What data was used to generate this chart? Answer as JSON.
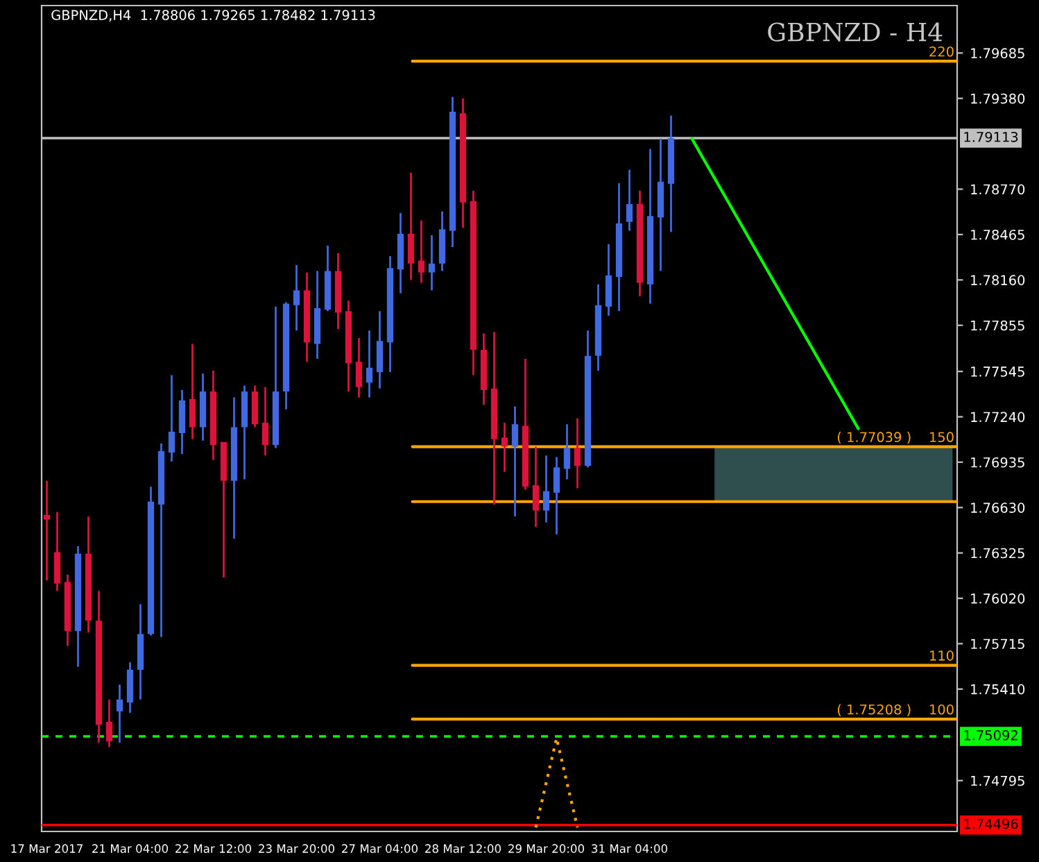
{
  "chart_data": {
    "type": "candlestick",
    "title": "GBPNZD - H4",
    "categories": [
      "17 Mar 2017",
      null,
      null,
      null,
      null,
      null,
      null,
      null,
      "21 Mar 04:00",
      null,
      null,
      null,
      null,
      null,
      null,
      null,
      "22 Mar 12:00",
      null,
      null,
      null,
      null,
      null,
      null,
      null,
      "23 Mar 20:00",
      null,
      null,
      null,
      null,
      null,
      null,
      null,
      "27 Mar 04:00",
      null,
      null,
      null,
      null,
      null,
      null,
      null,
      "28 Mar 12:00",
      null,
      null,
      null,
      null,
      null,
      null,
      null,
      "29 Mar 20:00",
      null,
      null,
      null,
      null,
      null,
      null,
      null,
      "31 Mar 04:00",
      null,
      null,
      null,
      null,
      null,
      null,
      null,
      null,
      null,
      null,
      null,
      null,
      null,
      null,
      null,
      null,
      null,
      null,
      null,
      null,
      null,
      null,
      null,
      null,
      null,
      null,
      null,
      null,
      null,
      null,
      null
    ],
    "ohlc": [
      [
        1.7658,
        1.7681,
        1.7614,
        1.7655
      ],
      [
        1.7633,
        1.766,
        1.7607,
        1.7612
      ],
      [
        1.7613,
        1.7618,
        1.757,
        1.758
      ],
      [
        1.758,
        1.7637,
        1.7556,
        1.7632
      ],
      [
        1.7632,
        1.7657,
        1.7579,
        1.7587
      ],
      [
        1.7587,
        1.7607,
        1.7505,
        1.7517
      ],
      [
        1.7519,
        1.7534,
        1.7502,
        1.7506
      ],
      [
        1.7526,
        1.7544,
        1.7505,
        1.7534
      ],
      [
        1.7532,
        1.7559,
        1.7525,
        1.7554
      ],
      [
        1.7554,
        1.7598,
        1.7534,
        1.7578
      ],
      [
        1.7578,
        1.7677,
        1.7577,
        1.7667
      ],
      [
        1.7665,
        1.7706,
        1.7576,
        1.7701
      ],
      [
        1.77,
        1.7752,
        1.7694,
        1.7714
      ],
      [
        1.7713,
        1.7742,
        1.7699,
        1.7735
      ],
      [
        1.7736,
        1.7773,
        1.7709,
        1.7717
      ],
      [
        1.7717,
        1.7753,
        1.7708,
        1.7741
      ],
      [
        1.7741,
        1.7755,
        1.7695,
        1.7705
      ],
      [
        1.7707,
        1.7707,
        1.7616,
        1.7681
      ],
      [
        1.7681,
        1.7737,
        1.7642,
        1.7717
      ],
      [
        1.7717,
        1.7745,
        1.7682,
        1.7741
      ],
      [
        1.7741,
        1.7745,
        1.7717,
        1.7719
      ],
      [
        1.772,
        1.7744,
        1.7698,
        1.7705
      ],
      [
        1.7705,
        1.7798,
        1.7703,
        1.7741
      ],
      [
        1.7741,
        1.7801,
        1.7729,
        1.78
      ],
      [
        1.7799,
        1.7826,
        1.7782,
        1.7809
      ],
      [
        1.7809,
        1.7821,
        1.7761,
        1.7774
      ],
      [
        1.7773,
        1.7822,
        1.7763,
        1.7797
      ],
      [
        1.7796,
        1.7839,
        1.7795,
        1.7822
      ],
      [
        1.7822,
        1.7834,
        1.7783,
        1.7794
      ],
      [
        1.7795,
        1.7802,
        1.7741,
        1.776
      ],
      [
        1.7761,
        1.7777,
        1.7737,
        1.7744
      ],
      [
        1.7747,
        1.7782,
        1.7737,
        1.7757
      ],
      [
        1.7754,
        1.7795,
        1.7743,
        1.7775
      ],
      [
        1.7774,
        1.7832,
        1.7754,
        1.7824
      ],
      [
        1.7823,
        1.7861,
        1.7807,
        1.7847
      ],
      [
        1.7847,
        1.7888,
        1.7816,
        1.7827
      ],
      [
        1.7829,
        1.7856,
        1.7814,
        1.7821
      ],
      [
        1.7821,
        1.7846,
        1.7809,
        1.7827
      ],
      [
        1.7827,
        1.7862,
        1.7822,
        1.785
      ],
      [
        1.7849,
        1.7939,
        1.7838,
        1.7929
      ],
      [
        1.7928,
        1.7938,
        1.7851,
        1.7868
      ],
      [
        1.7869,
        1.7876,
        1.7752,
        1.7769
      ],
      [
        1.7769,
        1.778,
        1.7732,
        1.7742
      ],
      [
        1.7743,
        1.7781,
        1.7665,
        1.7709
      ],
      [
        1.771,
        1.772,
        1.7687,
        1.7704
      ],
      [
        1.7704,
        1.7731,
        1.7657,
        1.7719
      ],
      [
        1.7718,
        1.7763,
        1.7675,
        1.7677
      ],
      [
        1.7678,
        1.7704,
        1.765,
        1.7661
      ],
      [
        1.7661,
        1.7698,
        1.7653,
        1.7674
      ],
      [
        1.7673,
        1.7697,
        1.7645,
        1.769
      ],
      [
        1.7689,
        1.7719,
        1.7682,
        1.7703
      ],
      [
        1.7703,
        1.7723,
        1.7676,
        1.7691
      ],
      [
        1.7691,
        1.7782,
        1.769,
        1.7765
      ],
      [
        1.7765,
        1.7813,
        1.7755,
        1.7799
      ],
      [
        1.7798,
        1.784,
        1.7792,
        1.7819
      ],
      [
        1.7818,
        1.7881,
        1.7795,
        1.7854
      ],
      [
        1.7855,
        1.789,
        1.7849,
        1.7867
      ],
      [
        1.7867,
        1.7876,
        1.7805,
        1.7814
      ],
      [
        1.7813,
        1.7904,
        1.78,
        1.7859
      ],
      [
        1.7858,
        1.7911,
        1.7822,
        1.7882
      ],
      [
        1.78806,
        1.79265,
        1.78482,
        1.79113
      ],
      null,
      null,
      null,
      null,
      null,
      null,
      null,
      null,
      null,
      null,
      null,
      null,
      null,
      null,
      null,
      null,
      null,
      null,
      null,
      null,
      null,
      null,
      null,
      null,
      null,
      null,
      null
    ],
    "colors": [
      "#dc143c",
      "#dc143c",
      "#dc143c",
      "#4169e1",
      "#dc143c",
      "#dc143c",
      "#dc143c",
      "#4169e1",
      "#4169e1",
      "#4169e1",
      "#4169e1",
      "#4169e1",
      "#4169e1",
      "#4169e1",
      "#dc143c",
      "#4169e1",
      "#dc143c",
      "#dc143c",
      "#4169e1",
      "#4169e1",
      "#dc143c",
      "#dc143c",
      "#4169e1",
      "#4169e1",
      "#4169e1",
      "#dc143c",
      "#4169e1",
      "#4169e1",
      "#dc143c",
      "#dc143c",
      "#dc143c",
      "#4169e1",
      "#4169e1",
      "#4169e1",
      "#4169e1",
      "#dc143c",
      "#dc143c",
      "#4169e1",
      "#4169e1",
      "#4169e1",
      "#dc143c",
      "#dc143c",
      "#dc143c",
      "#dc143c",
      "#dc143c",
      "#4169e1",
      "#dc143c",
      "#dc143c",
      "#4169e1",
      "#4169e1",
      "#4169e1",
      "#dc143c",
      "#4169e1",
      "#4169e1",
      "#4169e1",
      "#4169e1",
      "#4169e1",
      "#dc143c",
      "#4169e1",
      "#4169e1",
      "#4169e1",
      null,
      null,
      null,
      null,
      null,
      null,
      null,
      null,
      null,
      null,
      null,
      null,
      null,
      null,
      null,
      null,
      null,
      null,
      null,
      null,
      null,
      null,
      null,
      null,
      null,
      null,
      null
    ],
    "series": [
      {
        "type": "line",
        "color": "#00ff00",
        "line_style": "solid",
        "values": [
          null,
          null,
          null,
          null,
          null,
          null,
          null,
          null,
          null,
          null,
          null,
          null,
          null,
          null,
          null,
          null,
          null,
          null,
          null,
          null,
          null,
          null,
          null,
          null,
          null,
          null,
          null,
          null,
          null,
          null,
          null,
          null,
          null,
          null,
          null,
          null,
          null,
          null,
          null,
          null,
          null,
          null,
          null,
          null,
          null,
          null,
          null,
          null,
          null,
          null,
          null,
          null,
          null,
          null,
          null,
          null,
          null,
          null,
          null,
          null,
          null,
          null,
          1.7911,
          null,
          null,
          null,
          null,
          null,
          null,
          null,
          null,
          null,
          null,
          null,
          null,
          null,
          null,
          null,
          1.7716,
          null,
          null,
          null,
          null,
          null,
          null,
          null,
          null,
          null
        ]
      },
      {
        "type": "line",
        "color": "#ffa500",
        "line_style": "dotted",
        "values": [
          null,
          null,
          null,
          null,
          null,
          null,
          null,
          null,
          null,
          null,
          null,
          null,
          null,
          null,
          null,
          null,
          null,
          null,
          null,
          null,
          null,
          null,
          null,
          null,
          null,
          null,
          null,
          null,
          null,
          null,
          null,
          null,
          null,
          null,
          null,
          null,
          null,
          null,
          null,
          null,
          null,
          null,
          null,
          null,
          null,
          null,
          null,
          1.7448,
          null,
          1.7508,
          null,
          1.7448,
          null,
          null,
          null,
          null,
          null,
          null,
          null,
          null,
          null,
          null,
          null,
          null,
          null,
          null,
          null,
          null,
          null,
          null,
          null,
          null,
          null,
          null,
          null,
          null,
          null,
          null,
          null,
          null,
          null,
          null,
          null,
          null,
          null,
          null,
          null,
          null
        ]
      }
    ],
    "ylim": [
      1.74453,
      1.80004
    ],
    "yticks": [
      1.79685,
      {
        "value": 1.7938,
        "label": "1.79380"
      },
      {
        "value": 1.7877,
        "label": "1.78770"
      },
      1.78465,
      {
        "value": 1.7816,
        "label": "1.78160"
      },
      1.77855,
      1.77545,
      {
        "value": 1.7724,
        "label": "1.77240"
      },
      1.76935,
      {
        "value": 1.7663,
        "label": "1.76630"
      },
      1.76325,
      {
        "value": 1.7602,
        "label": "1.76020"
      },
      1.75715,
      {
        "value": 1.7541,
        "label": "1.75410"
      },
      1.74795
    ],
    "ref_lines": [
      {
        "axis": "y",
        "value": 1.7963,
        "color": "#ffa500",
        "line_style": "solid"
      },
      {
        "axis": "y",
        "value": 1.77039,
        "color": "#ffa500",
        "line_style": "solid"
      },
      {
        "axis": "y",
        "value": 1.7667,
        "color": "#ffa500",
        "line_style": "solid"
      },
      {
        "axis": "y",
        "value": 1.7557,
        "color": "#ffa500",
        "line_style": "solid"
      },
      {
        "axis": "y",
        "value": 1.75208,
        "color": "#ffa500",
        "line_style": "solid"
      },
      {
        "axis": "y",
        "value": 1.79113,
        "label": "1.79113",
        "color": "#c0c0c0",
        "line_style": "solid"
      },
      {
        "axis": "y",
        "value": 1.75092,
        "label": "1.75092",
        "color": "#00ff00",
        "line_style": "dashed"
      },
      {
        "axis": "y",
        "value": 1.74496,
        "label": "1.74496",
        "color": "#ff0000",
        "line_style": "solid"
      }
    ],
    "bands": [
      {
        "axis": "y",
        "from": 1.7667,
        "to": 1.77039,
        "color": "#2f4f4f"
      }
    ],
    "annotations": [
      "GBPNZD,H4  1.78806 1.79265 1.78482 1.79113",
      {
        "text": "220",
        "y": 1.7963
      },
      {
        "text": "( 1.77039 )    150",
        "y": 1.77039
      },
      {
        "text": "110",
        "y": 1.7557
      },
      {
        "text": "( 1.75208 )    100",
        "y": 1.75208
      }
    ],
    "grid": false
  }
}
